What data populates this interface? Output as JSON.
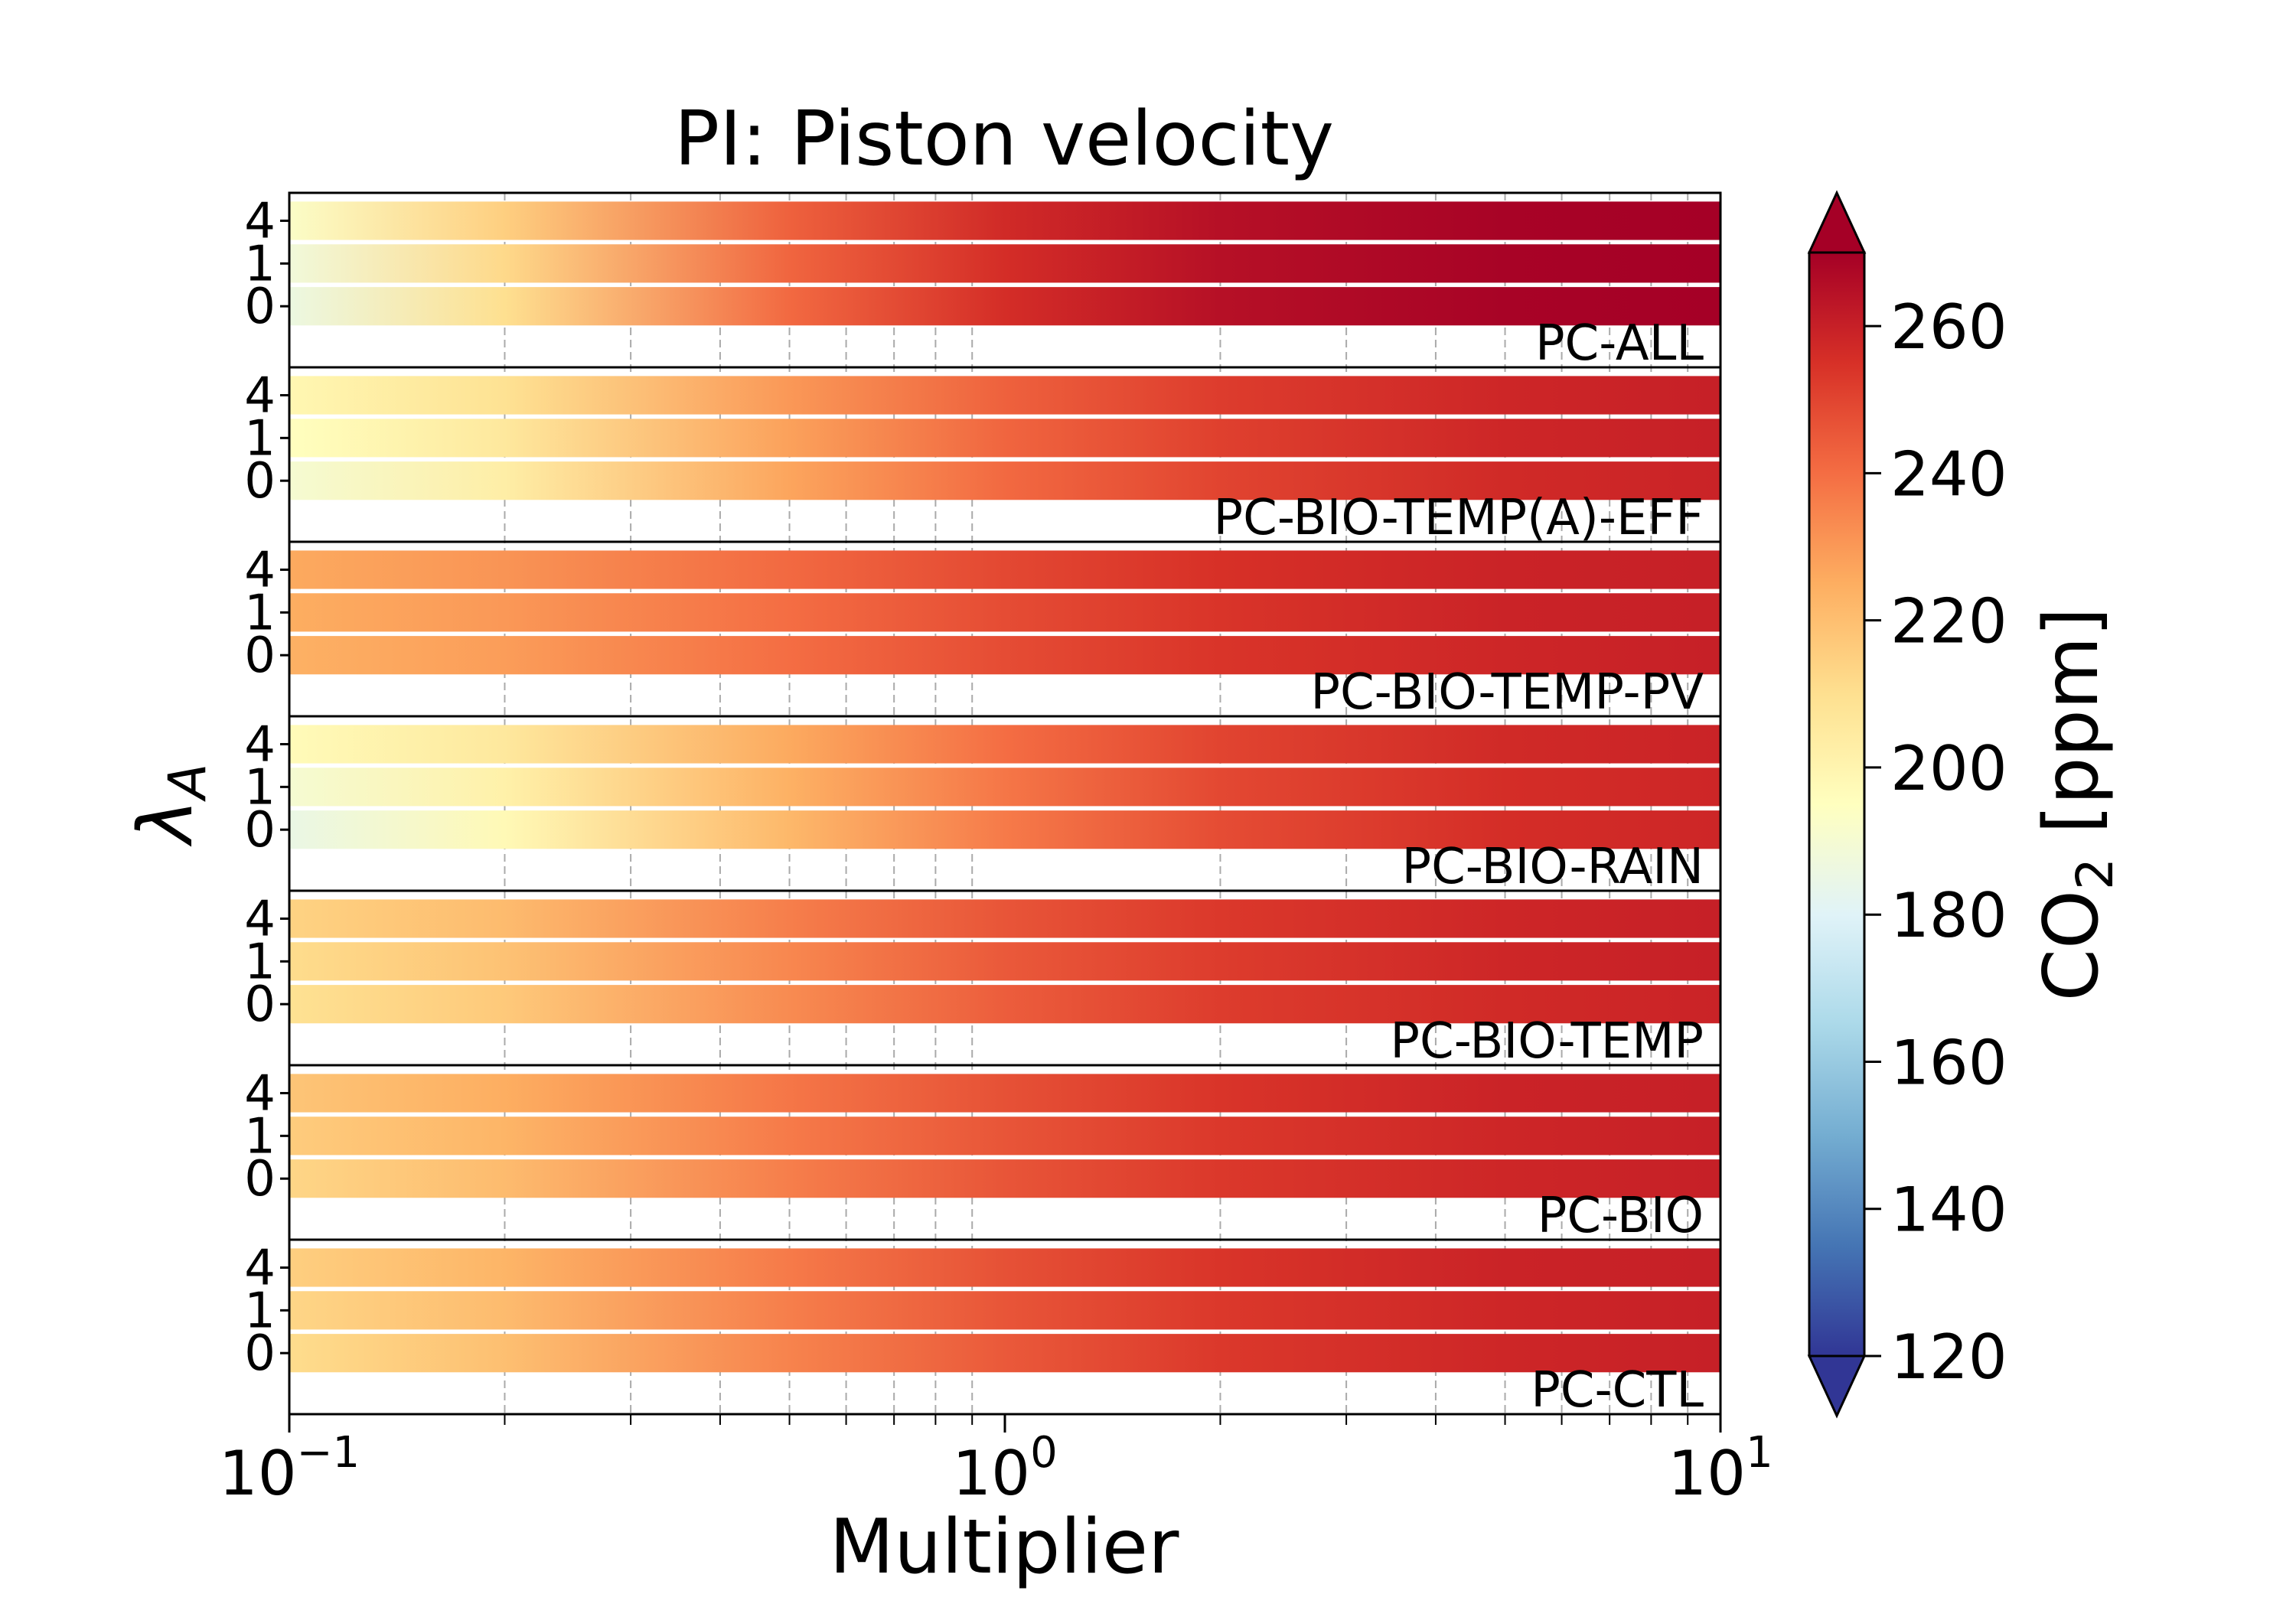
{
  "chart_data": {
    "type": "heatmap",
    "title": "PI: Piston velocity",
    "xlabel": "Multiplier",
    "ylabel": "λ_A",
    "xscale": "log",
    "xlim": [
      0.1,
      10
    ],
    "x_ticks": [
      {
        "value": 0.1,
        "base": "10",
        "exp": "−1"
      },
      {
        "value": 1,
        "base": "10",
        "exp": "0"
      },
      {
        "value": 10,
        "base": "10",
        "exp": "1"
      }
    ],
    "row_labels": [
      "4",
      "1",
      "0"
    ],
    "grid": "vertical dashed at minor ticks",
    "colorbar": {
      "label": "CO",
      "label_sub": "2",
      "label_unit": "[ppm]",
      "colormap": "RdYlBu_r",
      "range": [
        120,
        270
      ],
      "extend": "both",
      "ticks": [
        "120",
        "140",
        "160",
        "180",
        "200",
        "220",
        "240",
        "260"
      ]
    },
    "x_samples": [
      0.1,
      0.2,
      0.5,
      1,
      2,
      5,
      10
    ],
    "panels": [
      {
        "name": "PC-ALL",
        "rows": [
          {
            "lambda": "4",
            "values": [
              193,
              215,
              243,
              257,
              265,
              269,
              270
            ]
          },
          {
            "lambda": "1",
            "values": [
              188,
              212,
              242,
              256,
              265,
              269,
              270
            ]
          },
          {
            "lambda": "0",
            "values": [
              186,
              210,
              241,
              256,
              265,
              269,
              270
            ]
          }
        ]
      },
      {
        "name": "PC-BIO-TEMP(A)-EFF",
        "rows": [
          {
            "lambda": "4",
            "values": [
              199,
              209,
              230,
              243,
              252,
              258,
              260
            ]
          },
          {
            "lambda": "1",
            "values": [
              195,
              206,
              228,
              242,
              251,
              258,
              260
            ]
          },
          {
            "lambda": "0",
            "values": [
              190,
              203,
              227,
              241,
              250,
              257,
              259
            ]
          }
        ]
      },
      {
        "name": "PC-BIO-TEMP-PV",
        "rows": [
          {
            "lambda": "4",
            "values": [
              226,
              231,
              241,
              249,
              255,
              259,
              260
            ]
          },
          {
            "lambda": "1",
            "values": [
              225,
              230,
              240,
              248,
              254,
              259,
              260
            ]
          },
          {
            "lambda": "0",
            "values": [
              224,
              229,
              240,
              248,
              254,
              258,
              260
            ]
          }
        ]
      },
      {
        "name": "PC-BIO-RAIN",
        "rows": [
          {
            "lambda": "4",
            "values": [
              197,
              206,
              226,
              240,
              250,
              257,
              259
            ]
          },
          {
            "lambda": "1",
            "values": [
              190,
              202,
              224,
              238,
              249,
              256,
              258
            ]
          },
          {
            "lambda": "0",
            "values": [
              185,
              198,
              222,
              237,
              248,
              256,
              258
            ]
          }
        ]
      },
      {
        "name": "PC-BIO-TEMP",
        "rows": [
          {
            "lambda": "4",
            "values": [
              214,
              221,
              236,
              246,
              253,
              258,
              260
            ]
          },
          {
            "lambda": "1",
            "values": [
              211,
              219,
              234,
              245,
              252,
              258,
              260
            ]
          },
          {
            "lambda": "0",
            "values": [
              209,
              217,
              233,
              244,
              252,
              257,
              259
            ]
          }
        ]
      },
      {
        "name": "PC-BIO",
        "rows": [
          {
            "lambda": "4",
            "values": [
              218,
              225,
              238,
              247,
              254,
              259,
              260
            ]
          },
          {
            "lambda": "1",
            "values": [
              216,
              223,
              237,
              246,
              253,
              258,
              260
            ]
          },
          {
            "lambda": "0",
            "values": [
              213,
              221,
              236,
              246,
              253,
              258,
              260
            ]
          }
        ]
      },
      {
        "name": "PC-CTL",
        "rows": [
          {
            "lambda": "4",
            "values": [
              215,
              223,
              237,
              247,
              254,
              259,
              260
            ]
          },
          {
            "lambda": "1",
            "values": [
              213,
              221,
              236,
              246,
              253,
              258,
              260
            ]
          },
          {
            "lambda": "0",
            "values": [
              211,
              220,
              235,
              245,
              253,
              258,
              260
            ]
          }
        ]
      }
    ]
  }
}
